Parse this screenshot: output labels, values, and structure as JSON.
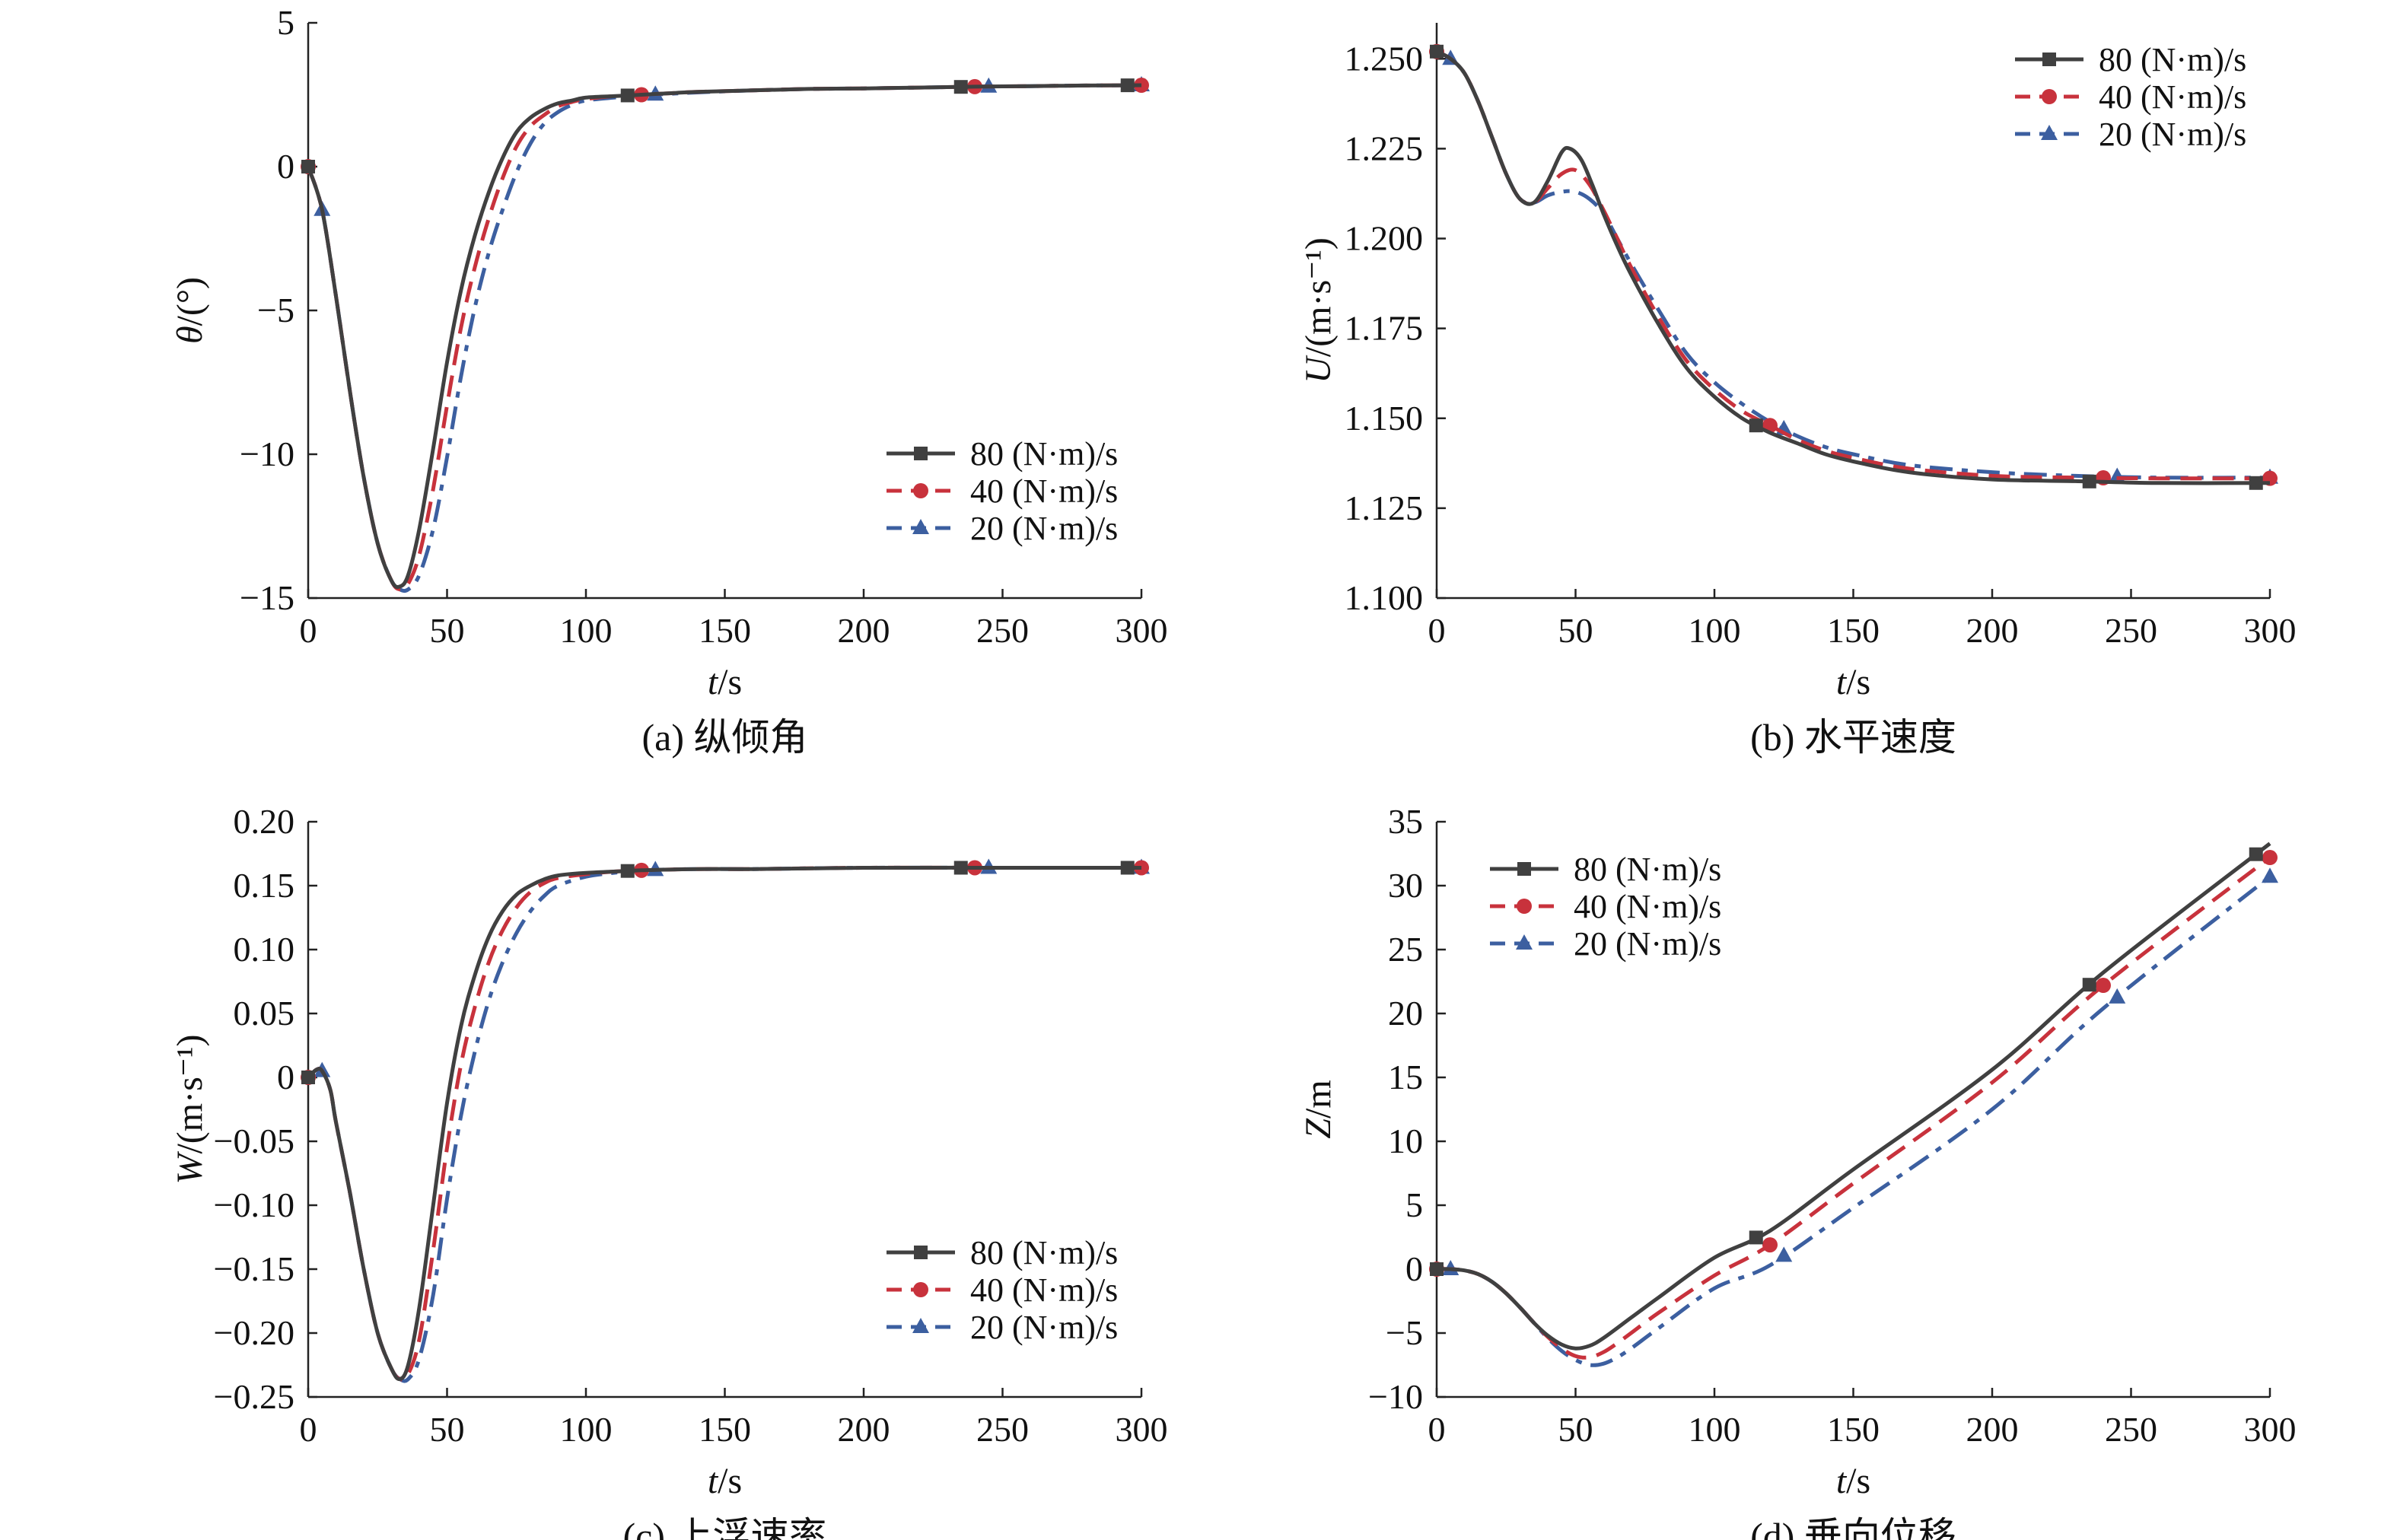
{
  "legend_entries": [
    "80 (N·m)/s",
    "40 (N·m)/s",
    "20 (N·m)/s"
  ],
  "series_styles": [
    {
      "color": "#404040",
      "dash": "none",
      "marker": "square"
    },
    {
      "color": "#c8323c",
      "dash": "28,14",
      "marker": "circle"
    },
    {
      "color": "#3c5fa0",
      "dash": "30,12,8,12",
      "marker": "triangle"
    }
  ],
  "chart_data": [
    {
      "id": "a",
      "type": "line",
      "caption": "(a) 纵倾角",
      "xlabel": "t/s",
      "ylabel": "θ/(°)",
      "xlim": [
        0,
        300
      ],
      "ylim": [
        -15,
        5
      ],
      "xticks": [
        0,
        50,
        100,
        150,
        200,
        250,
        300
      ],
      "xtick_labels": [
        "0",
        "50",
        "100",
        "150",
        "200",
        "250",
        "300"
      ],
      "yticks": [
        -15,
        -10,
        -5,
        0,
        5
      ],
      "ytick_labels": [
        "−15",
        "−10",
        "−5",
        "0",
        "5"
      ],
      "legend_pos": "bottom-right",
      "markers_x": [
        0,
        120,
        240,
        300
      ],
      "series": [
        {
          "name": "80 (N·m)/s",
          "x": [
            0,
            5,
            10,
            15,
            20,
            25,
            30,
            33,
            36,
            40,
            45,
            50,
            55,
            60,
            65,
            70,
            75,
            80,
            85,
            90,
            95,
            100,
            110,
            120,
            130,
            140,
            160,
            180,
            200,
            220,
            240,
            260,
            280,
            300
          ],
          "y": [
            0,
            -1.5,
            -4.5,
            -7.8,
            -10.8,
            -13.1,
            -14.4,
            -14.6,
            -14.2,
            -12.6,
            -9.8,
            -6.8,
            -4.3,
            -2.4,
            -0.9,
            0.3,
            1.2,
            1.7,
            2.0,
            2.2,
            2.3,
            2.4,
            2.45,
            2.5,
            2.55,
            2.6,
            2.65,
            2.7,
            2.72,
            2.75,
            2.78,
            2.8,
            2.82,
            2.83
          ]
        },
        {
          "name": "40 (N·m)/s",
          "x": [
            0,
            5,
            10,
            15,
            20,
            25,
            30,
            33,
            36,
            40,
            45,
            50,
            55,
            60,
            65,
            70,
            75,
            80,
            85,
            90,
            95,
            100,
            110,
            120,
            130,
            140,
            160,
            180,
            200,
            220,
            240,
            260,
            280,
            300
          ],
          "y": [
            0,
            -1.5,
            -4.5,
            -7.8,
            -10.8,
            -13.1,
            -14.4,
            -14.7,
            -14.5,
            -13.5,
            -11.2,
            -8.3,
            -5.6,
            -3.5,
            -1.8,
            -0.4,
            0.7,
            1.4,
            1.8,
            2.1,
            2.25,
            2.35,
            2.45,
            2.5,
            2.55,
            2.6,
            2.65,
            2.7,
            2.72,
            2.75,
            2.78,
            2.8,
            2.82,
            2.83
          ]
        },
        {
          "name": "20 (N·m)/s",
          "x": [
            0,
            5,
            10,
            15,
            20,
            25,
            30,
            33,
            36,
            40,
            45,
            50,
            55,
            60,
            65,
            70,
            75,
            80,
            85,
            90,
            95,
            100,
            110,
            120,
            130,
            140,
            160,
            180,
            200,
            220,
            240,
            260,
            280,
            300
          ],
          "y": [
            0,
            -1.5,
            -4.5,
            -7.8,
            -10.8,
            -13.1,
            -14.4,
            -14.7,
            -14.7,
            -14.2,
            -12.6,
            -10.1,
            -7.3,
            -4.9,
            -3.0,
            -1.5,
            -0.2,
            0.8,
            1.5,
            1.9,
            2.15,
            2.3,
            2.4,
            2.48,
            2.53,
            2.58,
            2.65,
            2.7,
            2.72,
            2.75,
            2.78,
            2.8,
            2.82,
            2.83
          ]
        }
      ]
    },
    {
      "id": "b",
      "type": "line",
      "caption": "(b) 水平速度",
      "xlabel": "t/s",
      "ylabel": "U/(m·s⁻¹)",
      "xlim": [
        0,
        300
      ],
      "ylim": [
        1.1,
        1.26
      ],
      "xticks": [
        0,
        50,
        100,
        150,
        200,
        250,
        300
      ],
      "xtick_labels": [
        "0",
        "50",
        "100",
        "150",
        "200",
        "250",
        "300"
      ],
      "yticks": [
        1.1,
        1.125,
        1.15,
        1.175,
        1.2,
        1.225,
        1.25
      ],
      "ytick_labels": [
        "1.100",
        "1.125",
        "1.150",
        "1.175",
        "1.200",
        "1.225",
        "1.250"
      ],
      "legend_pos": "top-right",
      "markers_x": [
        0,
        120,
        240,
        300
      ],
      "series": [
        {
          "name": "80 (N·m)/s",
          "x": [
            0,
            5,
            10,
            15,
            20,
            25,
            30,
            35,
            40,
            45,
            48,
            52,
            56,
            60,
            65,
            70,
            80,
            90,
            100,
            110,
            120,
            130,
            140,
            150,
            170,
            200,
            230,
            260,
            300
          ],
          "y": [
            1.252,
            1.25,
            1.246,
            1.238,
            1.228,
            1.218,
            1.211,
            1.21,
            1.216,
            1.224,
            1.225,
            1.222,
            1.215,
            1.207,
            1.198,
            1.19,
            1.176,
            1.164,
            1.156,
            1.15,
            1.146,
            1.143,
            1.14,
            1.138,
            1.135,
            1.133,
            1.1325,
            1.132,
            1.132
          ]
        },
        {
          "name": "40 (N·m)/s",
          "x": [
            0,
            5,
            10,
            15,
            20,
            25,
            30,
            35,
            40,
            45,
            50,
            55,
            60,
            65,
            70,
            80,
            90,
            100,
            110,
            120,
            130,
            140,
            150,
            170,
            200,
            230,
            260,
            300
          ],
          "y": [
            1.252,
            1.25,
            1.246,
            1.238,
            1.228,
            1.218,
            1.211,
            1.21,
            1.214,
            1.218,
            1.219,
            1.215,
            1.208,
            1.2,
            1.192,
            1.178,
            1.166,
            1.158,
            1.152,
            1.148,
            1.144,
            1.141,
            1.139,
            1.136,
            1.134,
            1.1335,
            1.1333,
            1.1333
          ]
        },
        {
          "name": "20 (N·m)/s",
          "x": [
            0,
            5,
            10,
            15,
            20,
            25,
            30,
            35,
            40,
            45,
            50,
            55,
            60,
            65,
            70,
            80,
            90,
            100,
            110,
            120,
            130,
            140,
            150,
            170,
            200,
            230,
            260,
            300
          ],
          "y": [
            1.252,
            1.25,
            1.246,
            1.238,
            1.228,
            1.218,
            1.211,
            1.21,
            1.212,
            1.213,
            1.213,
            1.211,
            1.207,
            1.2,
            1.193,
            1.18,
            1.168,
            1.16,
            1.154,
            1.149,
            1.145,
            1.142,
            1.14,
            1.137,
            1.135,
            1.134,
            1.1335,
            1.1335
          ]
        }
      ]
    },
    {
      "id": "c",
      "type": "line",
      "caption": "(c) 上浮速率",
      "xlabel": "t/s",
      "ylabel": "W/(m·s⁻¹)",
      "xlim": [
        0,
        300
      ],
      "ylim": [
        -0.25,
        0.2
      ],
      "xticks": [
        0,
        50,
        100,
        150,
        200,
        250,
        300
      ],
      "xtick_labels": [
        "0",
        "50",
        "100",
        "150",
        "200",
        "250",
        "300"
      ],
      "yticks": [
        -0.25,
        -0.2,
        -0.15,
        -0.1,
        -0.05,
        0,
        0.05,
        0.1,
        0.15,
        0.2
      ],
      "ytick_labels": [
        "−0.25",
        "−0.20",
        "−0.15",
        "−0.10",
        "−0.05",
        "0",
        "0.05",
        "0.10",
        "0.15",
        "0.20"
      ],
      "legend_pos": "bottom-right",
      "markers_x": [
        0,
        120,
        240,
        300
      ],
      "series": [
        {
          "name": "80 (N·m)/s",
          "x": [
            0,
            3,
            5,
            8,
            10,
            15,
            20,
            25,
            30,
            33,
            36,
            40,
            45,
            50,
            55,
            60,
            65,
            70,
            75,
            80,
            85,
            90,
            100,
            110,
            120,
            140,
            160,
            200,
            250,
            300
          ],
          "y": [
            0,
            0.006,
            0.005,
            -0.01,
            -0.035,
            -0.09,
            -0.15,
            -0.2,
            -0.228,
            -0.236,
            -0.225,
            -0.18,
            -0.1,
            -0.02,
            0.04,
            0.08,
            0.11,
            0.13,
            0.143,
            0.15,
            0.155,
            0.158,
            0.16,
            0.161,
            0.162,
            0.163,
            0.163,
            0.164,
            0.164,
            0.164
          ]
        },
        {
          "name": "40 (N·m)/s",
          "x": [
            0,
            3,
            5,
            8,
            10,
            15,
            20,
            25,
            30,
            33,
            36,
            40,
            45,
            50,
            55,
            60,
            65,
            70,
            75,
            80,
            85,
            90,
            100,
            110,
            120,
            140,
            160,
            200,
            250,
            300
          ],
          "y": [
            0,
            0.006,
            0.005,
            -0.01,
            -0.035,
            -0.09,
            -0.15,
            -0.2,
            -0.228,
            -0.236,
            -0.232,
            -0.205,
            -0.135,
            -0.055,
            0.01,
            0.055,
            0.09,
            0.115,
            0.133,
            0.145,
            0.152,
            0.156,
            0.159,
            0.161,
            0.162,
            0.163,
            0.163,
            0.164,
            0.164,
            0.164
          ]
        },
        {
          "name": "20 (N·m)/s",
          "x": [
            0,
            3,
            5,
            8,
            10,
            15,
            20,
            25,
            30,
            33,
            36,
            40,
            45,
            50,
            55,
            60,
            65,
            70,
            75,
            80,
            85,
            90,
            100,
            110,
            120,
            140,
            160,
            200,
            250,
            300
          ],
          "y": [
            0,
            0.006,
            0.005,
            -0.01,
            -0.035,
            -0.09,
            -0.15,
            -0.2,
            -0.228,
            -0.236,
            -0.236,
            -0.22,
            -0.17,
            -0.095,
            -0.03,
            0.02,
            0.06,
            0.09,
            0.113,
            0.13,
            0.142,
            0.15,
            0.157,
            0.16,
            0.162,
            0.163,
            0.163,
            0.164,
            0.164,
            0.164
          ]
        }
      ]
    },
    {
      "id": "d",
      "type": "line",
      "caption": "(d) 垂向位移",
      "xlabel": "t/s",
      "ylabel": "Z/m",
      "xlim": [
        0,
        300
      ],
      "ylim": [
        -10,
        35
      ],
      "xticks": [
        0,
        50,
        100,
        150,
        200,
        250,
        300
      ],
      "xtick_labels": [
        "0",
        "50",
        "100",
        "150",
        "200",
        "250",
        "300"
      ],
      "yticks": [
        -10,
        -5,
        0,
        5,
        10,
        15,
        20,
        25,
        30,
        35
      ],
      "ytick_labels": [
        "−10",
        "−5",
        "0",
        "5",
        "10",
        "15",
        "20",
        "25",
        "30",
        "35"
      ],
      "legend_pos": "top-left",
      "markers_x": [
        0,
        120,
        240,
        300
      ],
      "series": [
        {
          "name": "80 (N·m)/s",
          "x": [
            0,
            5,
            10,
            15,
            20,
            25,
            30,
            35,
            40,
            45,
            50,
            55,
            60,
            70,
            80,
            100,
            120,
            150,
            200,
            240,
            300
          ],
          "y": [
            0,
            0,
            -0.1,
            -0.4,
            -1.0,
            -1.9,
            -3.0,
            -4.2,
            -5.2,
            -5.9,
            -6.2,
            -6.0,
            -5.4,
            -3.8,
            -2.2,
            0.9,
            3.0,
            7.8,
            15.6,
            23.2,
            33.3
          ]
        },
        {
          "name": "40 (N·m)/s",
          "x": [
            0,
            5,
            10,
            15,
            20,
            25,
            30,
            35,
            40,
            45,
            50,
            55,
            60,
            65,
            70,
            80,
            100,
            120,
            150,
            200,
            240,
            300
          ],
          "y": [
            0,
            0,
            -0.1,
            -0.4,
            -1.0,
            -1.9,
            -3.0,
            -4.2,
            -5.3,
            -6.2,
            -6.8,
            -6.9,
            -6.5,
            -5.8,
            -5.0,
            -3.4,
            -0.5,
            1.9,
            6.7,
            14.6,
            22.2,
            32.2
          ]
        },
        {
          "name": "20 (N·m)/s",
          "x": [
            0,
            5,
            10,
            15,
            20,
            25,
            30,
            35,
            40,
            45,
            50,
            55,
            60,
            65,
            70,
            80,
            100,
            120,
            150,
            200,
            240,
            300
          ],
          "y": [
            0,
            0,
            -0.1,
            -0.4,
            -1.0,
            -1.9,
            -3.0,
            -4.2,
            -5.4,
            -6.4,
            -7.1,
            -7.5,
            -7.4,
            -6.9,
            -6.2,
            -4.6,
            -1.5,
            0.3,
            4.8,
            12.5,
            20.4,
            30.7
          ]
        }
      ]
    }
  ]
}
